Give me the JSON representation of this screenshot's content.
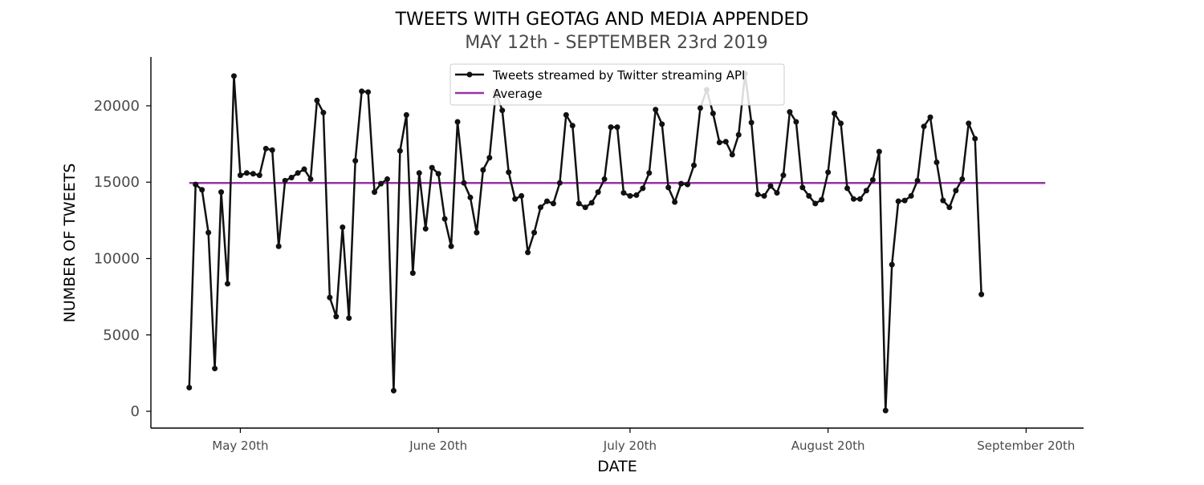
{
  "chart_data": {
    "type": "line",
    "title": "TWEETS WITH GEOTAG AND MEDIA APPENDED",
    "subtitle": "MAY 12th - SEPTEMBER 23rd 2019",
    "xlabel": "DATE",
    "ylabel": "NUMBER OF TWEETS",
    "x_start": "2019-05-12",
    "x_end": "2019-09-23",
    "xlim": [
      "2019-05-06",
      "2019-09-29"
    ],
    "ylim": [
      -1100,
      23200
    ],
    "x_ticks": [
      {
        "date": "2019-05-20",
        "label": "May 20th"
      },
      {
        "date": "2019-06-20",
        "label": "June 20th"
      },
      {
        "date": "2019-07-20",
        "label": "July 20th"
      },
      {
        "date": "2019-08-20",
        "label": "August 20th"
      },
      {
        "date": "2019-09-20",
        "label": "September 20th"
      }
    ],
    "y_ticks": [
      0,
      5000,
      10000,
      15000,
      20000
    ],
    "grid": false,
    "legend_position": "top-center",
    "series": [
      {
        "name": "Tweets streamed by Twitter streaming API",
        "color": "#111111",
        "marker": "circle",
        "values": [
          1550,
          14850,
          14500,
          11700,
          2800,
          14350,
          8350,
          21950,
          15450,
          15600,
          15550,
          15450,
          17200,
          17100,
          10800,
          15100,
          15300,
          15600,
          15850,
          15200,
          20350,
          19550,
          7450,
          6200,
          12050,
          6100,
          16400,
          20950,
          20900,
          14350,
          14900,
          15200,
          1350,
          17050,
          19400,
          9050,
          15600,
          11950,
          15950,
          15550,
          12600,
          10800,
          18950,
          14950,
          14000,
          11700,
          15800,
          16600,
          20900,
          19700,
          15650,
          13900,
          14100,
          10400,
          11700,
          13350,
          13750,
          13600,
          14950,
          19400,
          18700,
          13600,
          13350,
          13650,
          14350,
          15200,
          18600,
          18600,
          14300,
          14100,
          14150,
          14600,
          15600,
          19750,
          18800,
          14650,
          13700,
          14900,
          14850,
          16100,
          19850,
          21050,
          19500,
          17600,
          17650,
          16800,
          18100,
          22100,
          18900,
          14200,
          14100,
          14750,
          14300,
          15450,
          19600,
          18950,
          14650,
          14100,
          13600,
          13850,
          15650,
          19500,
          18850,
          14600,
          13900,
          13900,
          14450,
          15150,
          17000,
          50,
          9600,
          13750,
          13800,
          14100,
          15100,
          18650,
          19250,
          16300,
          13800,
          13350,
          14450,
          15200,
          18850,
          17850,
          7650
        ]
      },
      {
        "name": "Average",
        "color": "#9932a8",
        "constant": 14950
      }
    ]
  }
}
